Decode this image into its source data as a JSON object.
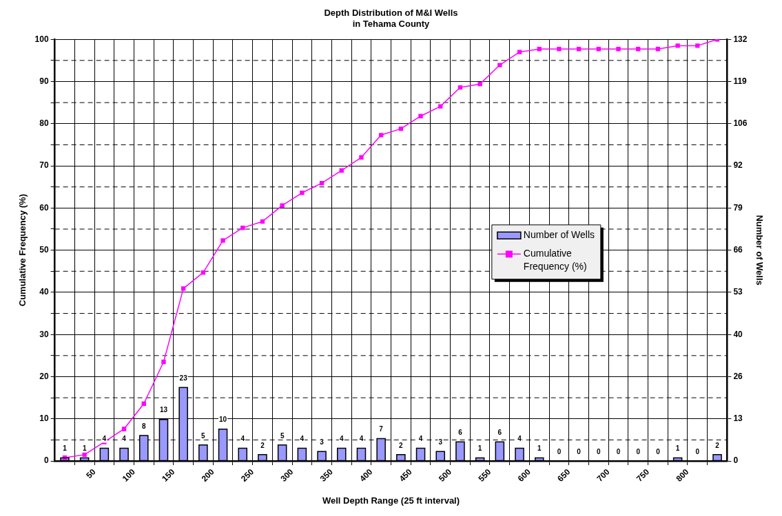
{
  "chart_data": {
    "type": "histogram",
    "title": "Depth Distribution of M&I Wells\nin Tehama County",
    "xlabel": "Well Depth Range (25 ft interval)",
    "ylabel": "Cumulative Frequency (%)",
    "y2label": "Number of Wells",
    "bins": [
      0,
      25,
      50,
      75,
      100,
      125,
      150,
      175,
      200,
      225,
      250,
      275,
      300,
      325,
      350,
      375,
      400,
      425,
      450,
      475,
      500,
      525,
      550,
      575,
      600,
      625,
      650,
      675,
      700,
      725,
      750,
      775,
      800,
      825,
      850
    ],
    "xlim": [
      0,
      850
    ],
    "xticks": [
      {
        "value": 25,
        "label": null
      },
      50,
      {
        "value": 75,
        "label": null
      },
      100,
      {
        "value": 125,
        "label": null
      },
      150,
      {
        "value": 175,
        "label": null
      },
      200,
      {
        "value": 225,
        "label": null
      },
      250,
      {
        "value": 275,
        "label": null
      },
      300,
      {
        "value": 325,
        "label": null
      },
      350,
      {
        "value": 375,
        "label": null
      },
      400,
      {
        "value": 425,
        "label": null
      },
      450,
      {
        "value": 475,
        "label": null
      },
      500,
      {
        "value": 525,
        "label": null
      },
      550,
      {
        "value": 575,
        "label": null
      },
      600,
      {
        "value": 625,
        "label": null
      },
      650,
      {
        "value": 675,
        "label": null
      },
      700,
      {
        "value": 725,
        "label": null
      },
      750,
      {
        "value": 775,
        "label": null
      },
      800,
      {
        "value": 825,
        "label": null
      }
    ],
    "ylim": [
      0,
      100
    ],
    "yticks": [
      0,
      {
        "value": 5,
        "label": null
      },
      10,
      {
        "value": 15,
        "label": null
      },
      20,
      {
        "value": 25,
        "label": null
      },
      30,
      {
        "value": 35,
        "label": null
      },
      40,
      {
        "value": 45,
        "label": null
      },
      50,
      {
        "value": 55,
        "label": null
      },
      60,
      {
        "value": 65,
        "label": null
      },
      70,
      {
        "value": 75,
        "label": null
      },
      80,
      {
        "value": 85,
        "label": null
      },
      90,
      {
        "value": 95,
        "label": null
      },
      100
    ],
    "y2lim": [
      0,
      132
    ],
    "y2ticks": [
      0,
      {
        "value": 13.2,
        "label": "13"
      },
      {
        "value": 26.4,
        "label": "26"
      },
      {
        "value": 39.6,
        "label": "40"
      },
      {
        "value": 52.8,
        "label": "53"
      },
      66,
      {
        "value": 79.2,
        "label": "79"
      },
      {
        "value": 92.4,
        "label": "92"
      },
      {
        "value": 105.6,
        "label": "106"
      },
      {
        "value": 118.8,
        "label": "119"
      },
      132
    ],
    "grid": true,
    "legend": "right",
    "marker": "square",
    "series": [
      {
        "name": "Number of Wells",
        "axis": "y2",
        "color": "#9999ff",
        "values": [
          1,
          1,
          4,
          4,
          8,
          13,
          23,
          5,
          10,
          4,
          2,
          5,
          4,
          3,
          4,
          4,
          7,
          2,
          4,
          3,
          6,
          1,
          6,
          4,
          1,
          0,
          0,
          0,
          0,
          0,
          0,
          1,
          0,
          2
        ],
        "value_labels": [
          "1",
          "1",
          "4",
          "4",
          "8",
          "13",
          "23",
          "5",
          "10",
          "4",
          "2",
          "5",
          "4",
          "3",
          "4",
          "4",
          "7",
          "2",
          "4",
          "3",
          "6",
          "1",
          "6",
          "4",
          "1",
          "0",
          "0",
          "0",
          "0",
          "0",
          "0",
          "1",
          "0",
          "2"
        ]
      },
      {
        "name": "Cumulative Frequency (%)",
        "type": "line",
        "axis": "y",
        "color": "#ff00ff",
        "x": [
          12.5,
          37.5,
          62.5,
          87.5,
          112.5,
          137.5,
          162.5,
          187.5,
          212.5,
          237.5,
          262.5,
          287.5,
          312.5,
          337.5,
          362.5,
          387.5,
          412.5,
          437.5,
          462.5,
          487.5,
          512.5,
          537.5,
          562.5,
          587.5,
          612.5,
          637.5,
          662.5,
          687.5,
          712.5,
          737.5,
          762.5,
          787.5,
          812.5,
          837.5
        ],
        "values": [
          0.8,
          1.5,
          4.5,
          7.6,
          13.6,
          23.5,
          40.9,
          44.7,
          52.3,
          55.3,
          56.8,
          60.6,
          63.6,
          65.9,
          68.9,
          72.0,
          77.3,
          78.8,
          81.8,
          84.1,
          88.6,
          89.4,
          93.9,
          97.0,
          97.7,
          97.7,
          97.7,
          97.7,
          97.7,
          97.7,
          97.7,
          98.5,
          98.5,
          100
        ]
      }
    ]
  }
}
